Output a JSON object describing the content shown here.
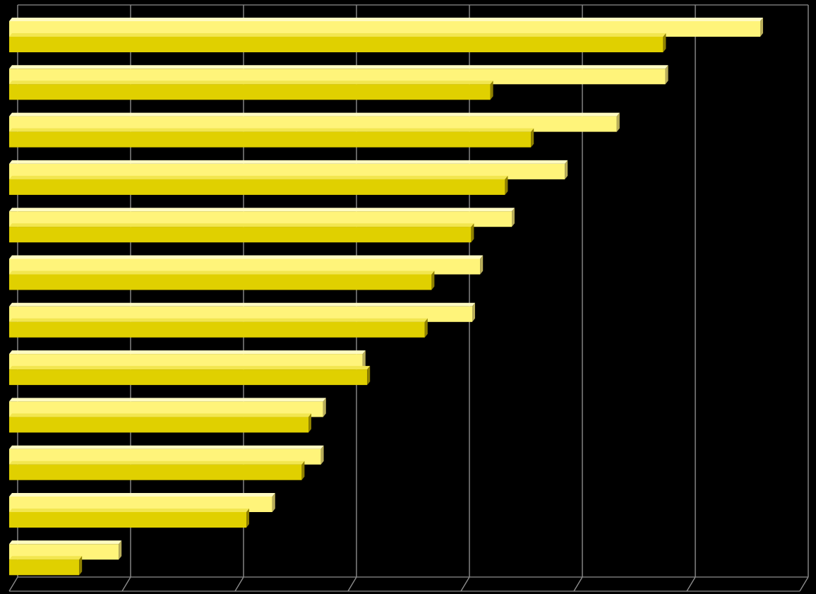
{
  "chart_data": {
    "type": "bar",
    "orientation": "horizontal",
    "title": "",
    "xlabel": "",
    "ylabel": "",
    "grid": true,
    "legend": "none",
    "x_range": [
      0,
      7
    ],
    "categories": [
      "",
      "",
      "",
      "",
      "",
      "",
      "",
      "",
      "",
      "",
      "",
      ""
    ],
    "series": [
      {
        "values": [
          6.65,
          5.81,
          5.38,
          4.92,
          4.45,
          4.17,
          4.1,
          3.13,
          2.78,
          2.76,
          2.33,
          0.97
        ]
      },
      {
        "values": [
          5.79,
          4.26,
          4.62,
          4.39,
          4.09,
          3.74,
          3.68,
          3.17,
          2.65,
          2.59,
          2.1,
          0.62
        ]
      }
    ],
    "colors": {
      "background": "#000000",
      "grid": "#8c8c8c",
      "series_front": [
        "#fff47a",
        "#e0d000"
      ],
      "series_side": [
        "#b8ad5a",
        "#8f8100"
      ],
      "series_top": [
        "#fffbc2",
        "#f2e650"
      ]
    }
  }
}
